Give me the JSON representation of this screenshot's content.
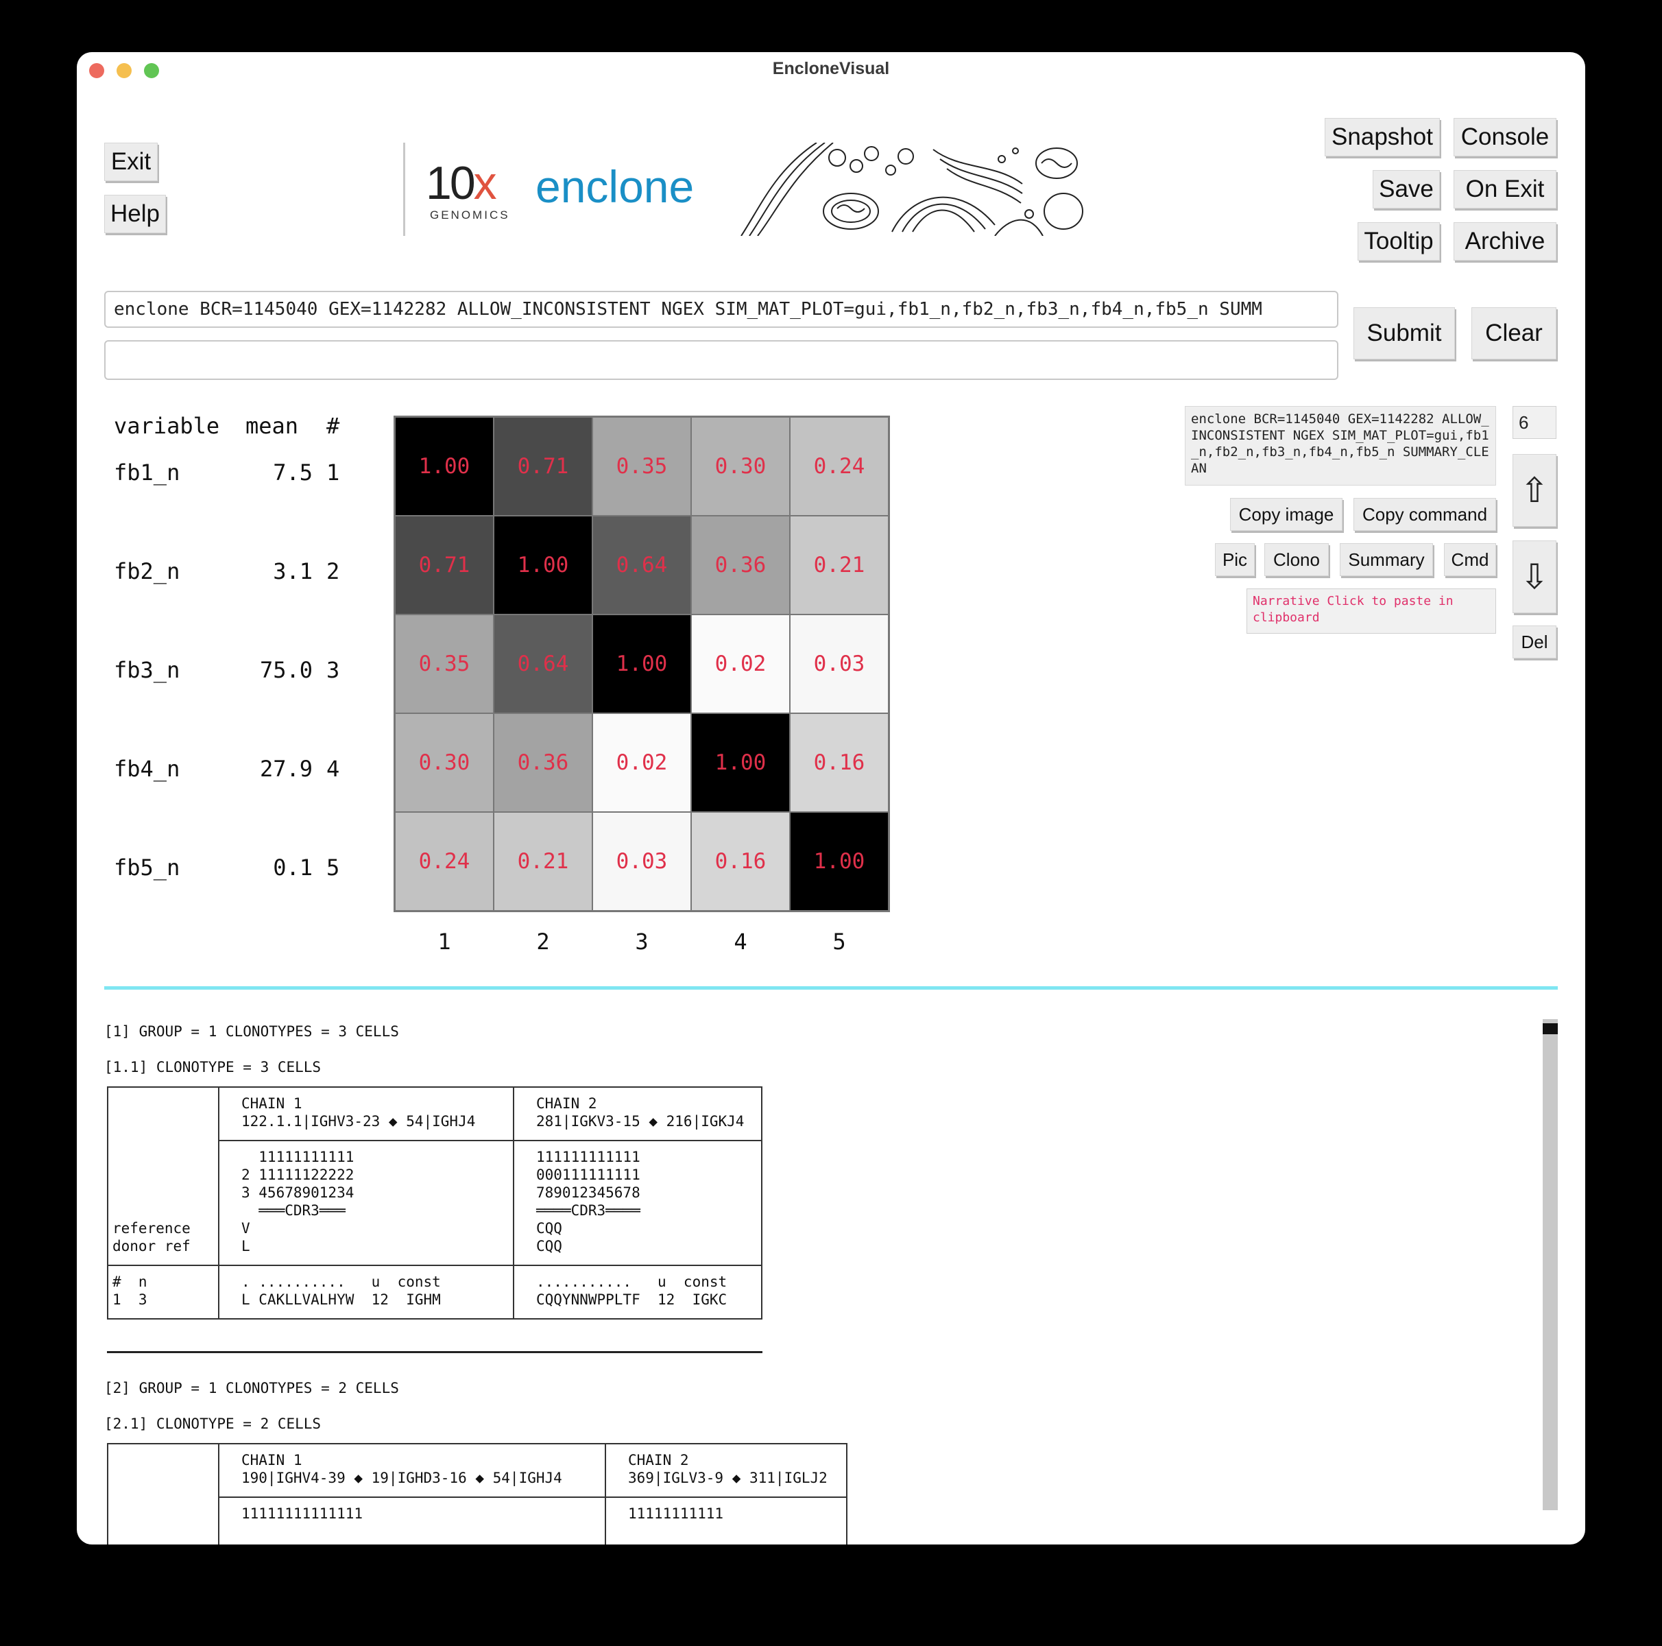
{
  "window": {
    "title": "EncloneVisual"
  },
  "buttons": {
    "exit": "Exit",
    "help": "Help",
    "snapshot": "Snapshot",
    "console": "Console",
    "save": "Save",
    "on_exit": "On Exit",
    "tooltip": "Tooltip",
    "archive": "Archive",
    "submit": "Submit",
    "clear": "Clear",
    "copy_image": "Copy image",
    "copy_command": "Copy command",
    "pic": "Pic",
    "clono": "Clono",
    "summary": "Summary",
    "cmd": "Cmd",
    "del": "Del"
  },
  "banner": {
    "logo_main": "10",
    "logo_x": "x",
    "logo_sub": "GENOMICS",
    "product": "enclone"
  },
  "command": {
    "value": "enclone BCR=1145040 GEX=1142282 ALLOW_INCONSISTENT NGEX SIM_MAT_PLOT=gui,fb1_n,fb2_n,fb3_n,fb4_n,fb5_n SUMM",
    "second_value": ""
  },
  "history": {
    "command_text": "enclone BCR=1145040 GEX=1142282 ALLOW_INCONSISTENT NGEX SIM_MAT_PLOT=gui,fb1_n,fb2_n,fb3_n,fb4_n,fb5_n SUMMARY_CLEAN",
    "index": "6",
    "narrative": "Narrative  Click to paste in clipboard",
    "up_icon": "up-arrow-icon",
    "down_icon": "down-arrow-icon"
  },
  "variables": {
    "headers": [
      "variable",
      "mean",
      "#"
    ],
    "rows": [
      [
        "fb1_n",
        "7.5",
        "1"
      ],
      [
        "fb2_n",
        "3.1",
        "2"
      ],
      [
        "fb3_n",
        "75.0",
        "3"
      ],
      [
        "fb4_n",
        "27.9",
        "4"
      ],
      [
        "fb5_n",
        "0.1",
        "5"
      ]
    ]
  },
  "chart_data": {
    "type": "heatmap",
    "x_labels": [
      "1",
      "2",
      "3",
      "4",
      "5"
    ],
    "y_labels": [
      "1",
      "2",
      "3",
      "4",
      "5"
    ],
    "values": [
      [
        1.0,
        0.71,
        0.35,
        0.3,
        0.24
      ],
      [
        0.71,
        1.0,
        0.64,
        0.36,
        0.21
      ],
      [
        0.35,
        0.64,
        1.0,
        0.02,
        0.03
      ],
      [
        0.3,
        0.36,
        0.02,
        1.0,
        0.16
      ],
      [
        0.24,
        0.21,
        0.03,
        0.16,
        1.0
      ]
    ],
    "cell_labels": [
      [
        "1.00",
        "0.71",
        "0.35",
        "0.30",
        "0.24"
      ],
      [
        "0.71",
        "1.00",
        "0.64",
        "0.36",
        "0.21"
      ],
      [
        "0.35",
        "0.64",
        "1.00",
        "0.02",
        "0.03"
      ],
      [
        "0.30",
        "0.36",
        "0.02",
        "1.00",
        "0.16"
      ],
      [
        "0.24",
        "0.21",
        "0.03",
        "0.16",
        "1.00"
      ]
    ],
    "colormap": "grayscale (1 = black, 0 = white)",
    "label_color": "#e0304a"
  },
  "clonotypes": {
    "g1_header": "[1] GROUP = 1 CLONOTYPES = 3 CELLS",
    "g1_sub": "[1.1] CLONOTYPE = 3 CELLS",
    "g1_chain1_title": "CHAIN 1",
    "g1_chain1_genes": "122.1.1|IGHV3-23 ◆ 54|IGHJ4",
    "g1_chain2_title": "CHAIN 2",
    "g1_chain2_genes": "281|IGKV3-15 ◆ 216|IGKJ4",
    "g1_c1_pos1": "  11111111111",
    "g1_c1_pos2": "2 11111122222",
    "g1_c1_pos3": "3 45678901234",
    "g1_c1_cdr3": "  ═══CDR3═══",
    "g1_c1_ref": "V",
    "g1_c1_donor": "L",
    "g1_c2_pos1": "111111111111",
    "g1_c2_pos2": "000111111111",
    "g1_c2_pos3": "789012345678",
    "g1_c2_cdr3": "════CDR3════",
    "g1_c2_ref": "CQQ",
    "g1_c2_donor": "CQQ",
    "g1_left_ref": "reference",
    "g1_left_donor": "donor ref",
    "g1_left_cols": "#  n",
    "g1_left_vals": "1  3",
    "g1_c1_cols": ". ..........   u  const",
    "g1_c1_vals": "L CAKLLVALHYW  12  IGHM",
    "g1_c2_cols": "...........   u  const",
    "g1_c2_vals": "CQQYNNWPPLTF  12  IGKC",
    "g2_header": "[2] GROUP = 1 CLONOTYPES = 2 CELLS",
    "g2_sub": "[2.1] CLONOTYPE = 2 CELLS",
    "g2_chain1_title": "CHAIN 1",
    "g2_chain1_genes": "190|IGHV4-39 ◆ 19|IGHD3-16 ◆ 54|IGHJ4",
    "g2_chain2_title": "CHAIN 2",
    "g2_chain2_genes": "369|IGLV3-9 ◆ 311|IGLJ2",
    "g2_c1_pos1": "11111111111111",
    "g2_c2_pos1": "11111111111"
  }
}
